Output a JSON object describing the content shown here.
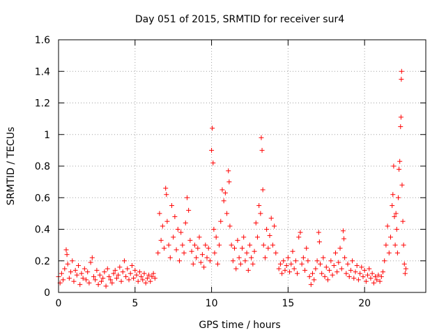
{
  "chart_data": {
    "type": "scatter",
    "title": "Day 051 of 2015, SRMTID for receiver sur4",
    "xlabel": "GPS time / hours",
    "ylabel": "SRMTID / TECUs",
    "xlim": [
      0,
      24
    ],
    "ylim": [
      0,
      1.6
    ],
    "xticks": [
      "0",
      "5",
      "10",
      "15",
      "20"
    ],
    "xtick_values": [
      0,
      5,
      10,
      15,
      20
    ],
    "yticks": [
      "0",
      "0.2",
      "0.4",
      "0.6",
      "0.8",
      "1",
      "1.2",
      "1.4",
      "1.6"
    ],
    "ytick_values": [
      0,
      0.2,
      0.4,
      0.6,
      0.8,
      1.0,
      1.2,
      1.4,
      1.6
    ],
    "grid": true,
    "marker": "+",
    "color": "#ff0000",
    "series": [
      {
        "name": "SRMTID",
        "points": [
          [
            0.0,
            0.1
          ],
          [
            0.1,
            0.06
          ],
          [
            0.2,
            0.12
          ],
          [
            0.3,
            0.08
          ],
          [
            0.4,
            0.15
          ],
          [
            0.5,
            0.27
          ],
          [
            0.55,
            0.24
          ],
          [
            0.6,
            0.18
          ],
          [
            0.7,
            0.09
          ],
          [
            0.8,
            0.13
          ],
          [
            0.9,
            0.2
          ],
          [
            1.0,
            0.07
          ],
          [
            1.1,
            0.14
          ],
          [
            1.2,
            0.11
          ],
          [
            1.3,
            0.17
          ],
          [
            1.4,
            0.05
          ],
          [
            1.5,
            0.12
          ],
          [
            1.6,
            0.09
          ],
          [
            1.7,
            0.15
          ],
          [
            1.8,
            0.08
          ],
          [
            1.9,
            0.13
          ],
          [
            2.0,
            0.06
          ],
          [
            2.1,
            0.19
          ],
          [
            2.2,
            0.22
          ],
          [
            2.3,
            0.1
          ],
          [
            2.4,
            0.08
          ],
          [
            2.5,
            0.14
          ],
          [
            2.6,
            0.05
          ],
          [
            2.7,
            0.11
          ],
          [
            2.8,
            0.07
          ],
          [
            2.9,
            0.09
          ],
          [
            3.0,
            0.13
          ],
          [
            3.1,
            0.04
          ],
          [
            3.2,
            0.15
          ],
          [
            3.3,
            0.1
          ],
          [
            3.4,
            0.08
          ],
          [
            3.5,
            0.06
          ],
          [
            3.6,
            0.12
          ],
          [
            3.7,
            0.14
          ],
          [
            3.8,
            0.09
          ],
          [
            3.9,
            0.11
          ],
          [
            4.0,
            0.16
          ],
          [
            4.1,
            0.07
          ],
          [
            4.2,
            0.13
          ],
          [
            4.3,
            0.2
          ],
          [
            4.4,
            0.1
          ],
          [
            4.5,
            0.15
          ],
          [
            4.6,
            0.08
          ],
          [
            4.7,
            0.12
          ],
          [
            4.8,
            0.17
          ],
          [
            4.9,
            0.09
          ],
          [
            5.0,
            0.14
          ],
          [
            5.1,
            0.11
          ],
          [
            5.2,
            0.07
          ],
          [
            5.3,
            0.13
          ],
          [
            5.4,
            0.1
          ],
          [
            5.5,
            0.08
          ],
          [
            5.6,
            0.12
          ],
          [
            5.7,
            0.06
          ],
          [
            5.8,
            0.09
          ],
          [
            5.9,
            0.11
          ],
          [
            6.0,
            0.07
          ],
          [
            6.1,
            0.1
          ],
          [
            6.2,
            0.12
          ],
          [
            6.3,
            0.09
          ],
          [
            6.5,
            0.25
          ],
          [
            6.6,
            0.5
          ],
          [
            6.7,
            0.33
          ],
          [
            6.8,
            0.42
          ],
          [
            6.9,
            0.28
          ],
          [
            7.0,
            0.66
          ],
          [
            7.05,
            0.62
          ],
          [
            7.1,
            0.45
          ],
          [
            7.2,
            0.3
          ],
          [
            7.3,
            0.22
          ],
          [
            7.4,
            0.55
          ],
          [
            7.5,
            0.35
          ],
          [
            7.6,
            0.48
          ],
          [
            7.7,
            0.27
          ],
          [
            7.8,
            0.4
          ],
          [
            7.9,
            0.2
          ],
          [
            8.0,
            0.38
          ],
          [
            8.1,
            0.3
          ],
          [
            8.2,
            0.25
          ],
          [
            8.3,
            0.44
          ],
          [
            8.4,
            0.6
          ],
          [
            8.5,
            0.52
          ],
          [
            8.6,
            0.33
          ],
          [
            8.7,
            0.26
          ],
          [
            8.8,
            0.18
          ],
          [
            8.9,
            0.3
          ],
          [
            9.0,
            0.22
          ],
          [
            9.1,
            0.28
          ],
          [
            9.2,
            0.35
          ],
          [
            9.3,
            0.19
          ],
          [
            9.4,
            0.24
          ],
          [
            9.5,
            0.16
          ],
          [
            9.6,
            0.3
          ],
          [
            9.7,
            0.22
          ],
          [
            9.8,
            0.28
          ],
          [
            9.9,
            0.2
          ],
          [
            10.0,
            0.9
          ],
          [
            10.05,
            1.04
          ],
          [
            10.1,
            0.82
          ],
          [
            10.15,
            0.4
          ],
          [
            10.2,
            0.25
          ],
          [
            10.3,
            0.35
          ],
          [
            10.4,
            0.18
          ],
          [
            10.5,
            0.3
          ],
          [
            10.6,
            0.45
          ],
          [
            10.7,
            0.65
          ],
          [
            10.8,
            0.58
          ],
          [
            10.9,
            0.63
          ],
          [
            11.0,
            0.5
          ],
          [
            11.1,
            0.77
          ],
          [
            11.15,
            0.7
          ],
          [
            11.2,
            0.42
          ],
          [
            11.3,
            0.3
          ],
          [
            11.4,
            0.2
          ],
          [
            11.5,
            0.28
          ],
          [
            11.6,
            0.15
          ],
          [
            11.7,
            0.33
          ],
          [
            11.8,
            0.22
          ],
          [
            11.9,
            0.18
          ],
          [
            12.0,
            0.28
          ],
          [
            12.1,
            0.35
          ],
          [
            12.2,
            0.2
          ],
          [
            12.3,
            0.25
          ],
          [
            12.4,
            0.14
          ],
          [
            12.5,
            0.3
          ],
          [
            12.6,
            0.22
          ],
          [
            12.7,
            0.18
          ],
          [
            12.8,
            0.26
          ],
          [
            12.9,
            0.44
          ],
          [
            13.0,
            0.35
          ],
          [
            13.1,
            0.55
          ],
          [
            13.2,
            0.5
          ],
          [
            13.25,
            0.98
          ],
          [
            13.3,
            0.9
          ],
          [
            13.35,
            0.65
          ],
          [
            13.4,
            0.3
          ],
          [
            13.5,
            0.22
          ],
          [
            13.6,
            0.4
          ],
          [
            13.7,
            0.28
          ],
          [
            13.8,
            0.36
          ],
          [
            13.9,
            0.47
          ],
          [
            14.0,
            0.3
          ],
          [
            14.1,
            0.42
          ],
          [
            14.2,
            0.25
          ],
          [
            14.4,
            0.15
          ],
          [
            14.5,
            0.18
          ],
          [
            14.6,
            0.12
          ],
          [
            14.7,
            0.2
          ],
          [
            14.8,
            0.14
          ],
          [
            14.9,
            0.17
          ],
          [
            15.0,
            0.22
          ],
          [
            15.1,
            0.13
          ],
          [
            15.2,
            0.18
          ],
          [
            15.3,
            0.26
          ],
          [
            15.4,
            0.15
          ],
          [
            15.5,
            0.2
          ],
          [
            15.6,
            0.12
          ],
          [
            15.7,
            0.35
          ],
          [
            15.8,
            0.38
          ],
          [
            15.9,
            0.18
          ],
          [
            16.0,
            0.22
          ],
          [
            16.1,
            0.14
          ],
          [
            16.2,
            0.28
          ],
          [
            16.3,
            0.2
          ],
          [
            16.4,
            0.1
          ],
          [
            16.5,
            0.05
          ],
          [
            16.6,
            0.12
          ],
          [
            16.7,
            0.08
          ],
          [
            16.8,
            0.15
          ],
          [
            16.9,
            0.2
          ],
          [
            17.0,
            0.38
          ],
          [
            17.05,
            0.32
          ],
          [
            17.1,
            0.18
          ],
          [
            17.2,
            0.12
          ],
          [
            17.3,
            0.22
          ],
          [
            17.4,
            0.1
          ],
          [
            17.5,
            0.16
          ],
          [
            17.6,
            0.08
          ],
          [
            17.7,
            0.14
          ],
          [
            17.8,
            0.2
          ],
          [
            17.9,
            0.11
          ],
          [
            18.0,
            0.17
          ],
          [
            18.1,
            0.25
          ],
          [
            18.2,
            0.13
          ],
          [
            18.3,
            0.19
          ],
          [
            18.4,
            0.28
          ],
          [
            18.5,
            0.15
          ],
          [
            18.6,
            0.39
          ],
          [
            18.65,
            0.34
          ],
          [
            18.7,
            0.22
          ],
          [
            18.8,
            0.12
          ],
          [
            18.9,
            0.18
          ],
          [
            19.0,
            0.1
          ],
          [
            19.1,
            0.14
          ],
          [
            19.2,
            0.2
          ],
          [
            19.3,
            0.09
          ],
          [
            19.4,
            0.13
          ],
          [
            19.5,
            0.17
          ],
          [
            19.6,
            0.08
          ],
          [
            19.7,
            0.12
          ],
          [
            19.8,
            0.16
          ],
          [
            19.9,
            0.1
          ],
          [
            20.0,
            0.14
          ],
          [
            20.1,
            0.07
          ],
          [
            20.2,
            0.11
          ],
          [
            20.3,
            0.15
          ],
          [
            20.4,
            0.09
          ],
          [
            20.5,
            0.12
          ],
          [
            20.6,
            0.06
          ],
          [
            20.7,
            0.1
          ],
          [
            20.8,
            0.08
          ],
          [
            20.9,
            0.11
          ],
          [
            21.0,
            0.07
          ],
          [
            21.1,
            0.1
          ],
          [
            21.2,
            0.13
          ],
          [
            21.3,
            0.2
          ],
          [
            21.4,
            0.3
          ],
          [
            21.5,
            0.42
          ],
          [
            21.6,
            0.25
          ],
          [
            21.7,
            0.35
          ],
          [
            21.8,
            0.55
          ],
          [
            21.85,
            0.62
          ],
          [
            21.9,
            0.8
          ],
          [
            21.95,
            0.48
          ],
          [
            22.0,
            0.3
          ],
          [
            22.05,
            0.5
          ],
          [
            22.1,
            0.4
          ],
          [
            22.15,
            0.25
          ],
          [
            22.2,
            0.6
          ],
          [
            22.25,
            0.78
          ],
          [
            22.3,
            0.83
          ],
          [
            22.35,
            1.05
          ],
          [
            22.38,
            1.11
          ],
          [
            22.4,
            1.35
          ],
          [
            22.42,
            1.4
          ],
          [
            22.45,
            0.68
          ],
          [
            22.5,
            0.45
          ],
          [
            22.55,
            0.3
          ],
          [
            22.6,
            0.18
          ],
          [
            22.65,
            0.12
          ],
          [
            22.7,
            0.15
          ]
        ]
      }
    ]
  }
}
